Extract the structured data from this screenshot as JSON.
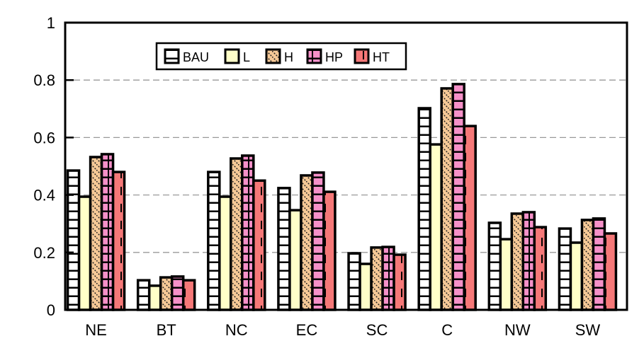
{
  "chart_data": {
    "type": "bar",
    "title": "",
    "xlabel": "",
    "ylabel": "",
    "ylim": [
      0,
      1
    ],
    "yticks": [
      "0",
      "0.2",
      "0.4",
      "0.6",
      "0.8",
      "1"
    ],
    "grid": "dashed horizontal",
    "legend_position": "top-center",
    "categories": [
      "NE",
      "BT",
      "NC",
      "EC",
      "SC",
      "C",
      "NW",
      "SW"
    ],
    "series": [
      {
        "name": "BAU",
        "color": "#ffffff",
        "values": [
          0.485,
          0.103,
          0.48,
          0.424,
          0.197,
          0.702,
          0.303,
          0.283
        ]
      },
      {
        "name": "L",
        "color": "#ffffc8",
        "values": [
          0.394,
          0.084,
          0.394,
          0.347,
          0.16,
          0.576,
          0.246,
          0.234
        ]
      },
      {
        "name": "H",
        "color": "#f5c896",
        "values": [
          0.532,
          0.113,
          0.527,
          0.468,
          0.217,
          0.771,
          0.335,
          0.313
        ]
      },
      {
        "name": "HP",
        "color": "#f590c8",
        "values": [
          0.542,
          0.116,
          0.537,
          0.478,
          0.219,
          0.786,
          0.34,
          0.318
        ]
      },
      {
        "name": "HT",
        "color": "#f57878",
        "values": [
          0.48,
          0.103,
          0.45,
          0.411,
          0.192,
          0.64,
          0.288,
          0.266
        ]
      }
    ]
  }
}
